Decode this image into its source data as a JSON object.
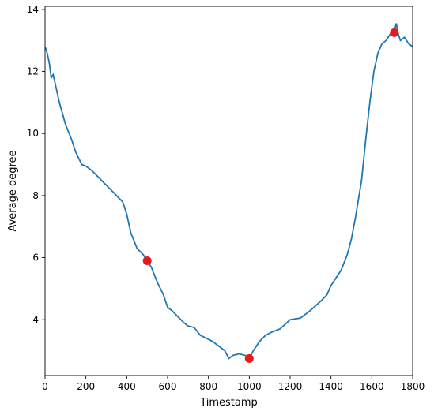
{
  "chart_data": {
    "type": "line",
    "xlabel": "Timestamp",
    "ylabel": "Average degree",
    "xlim": [
      0,
      1800
    ],
    "ylim": [
      2.2,
      14.1
    ],
    "xticks": [
      0,
      200,
      400,
      600,
      800,
      1000,
      1200,
      1400,
      1600,
      1800
    ],
    "yticks": [
      4,
      6,
      8,
      10,
      12,
      14
    ],
    "grid": false,
    "series": [
      {
        "color": "#1f77b4",
        "x": [
          0,
          10,
          20,
          30,
          40,
          50,
          70,
          100,
          130,
          150,
          180,
          200,
          230,
          260,
          290,
          320,
          350,
          380,
          400,
          420,
          450,
          480,
          500,
          520,
          550,
          580,
          600,
          620,
          650,
          680,
          700,
          730,
          760,
          790,
          820,
          850,
          880,
          900,
          920,
          950,
          980,
          1000,
          1020,
          1050,
          1080,
          1110,
          1150,
          1200,
          1250,
          1300,
          1350,
          1380,
          1400,
          1420,
          1450,
          1480,
          1500,
          1520,
          1550,
          1570,
          1590,
          1610,
          1630,
          1650,
          1670,
          1690,
          1710,
          1720,
          1730,
          1740,
          1760,
          1780,
          1800
        ],
        "y": [
          12.8,
          12.6,
          12.3,
          11.8,
          11.9,
          11.6,
          11.0,
          10.3,
          9.8,
          9.4,
          9.0,
          8.95,
          8.8,
          8.6,
          8.4,
          8.2,
          8.0,
          7.8,
          7.4,
          6.8,
          6.3,
          6.1,
          5.9,
          5.7,
          5.2,
          4.8,
          4.4,
          4.3,
          4.1,
          3.9,
          3.8,
          3.75,
          3.5,
          3.4,
          3.3,
          3.15,
          3.0,
          2.75,
          2.85,
          2.9,
          2.85,
          2.75,
          3.0,
          3.3,
          3.5,
          3.6,
          3.7,
          4.0,
          4.05,
          4.3,
          4.6,
          4.8,
          5.1,
          5.3,
          5.6,
          6.1,
          6.6,
          7.3,
          8.5,
          9.8,
          11.0,
          12.0,
          12.6,
          12.9,
          13.0,
          13.2,
          13.3,
          13.55,
          13.2,
          13.0,
          13.1,
          12.9,
          12.8
        ]
      }
    ],
    "markers": [
      {
        "x": 500,
        "y": 5.9,
        "color": "#e41a1c"
      },
      {
        "x": 1000,
        "y": 2.75,
        "color": "#e41a1c"
      },
      {
        "x": 1710,
        "y": 13.25,
        "color": "#e41a1c"
      }
    ]
  }
}
